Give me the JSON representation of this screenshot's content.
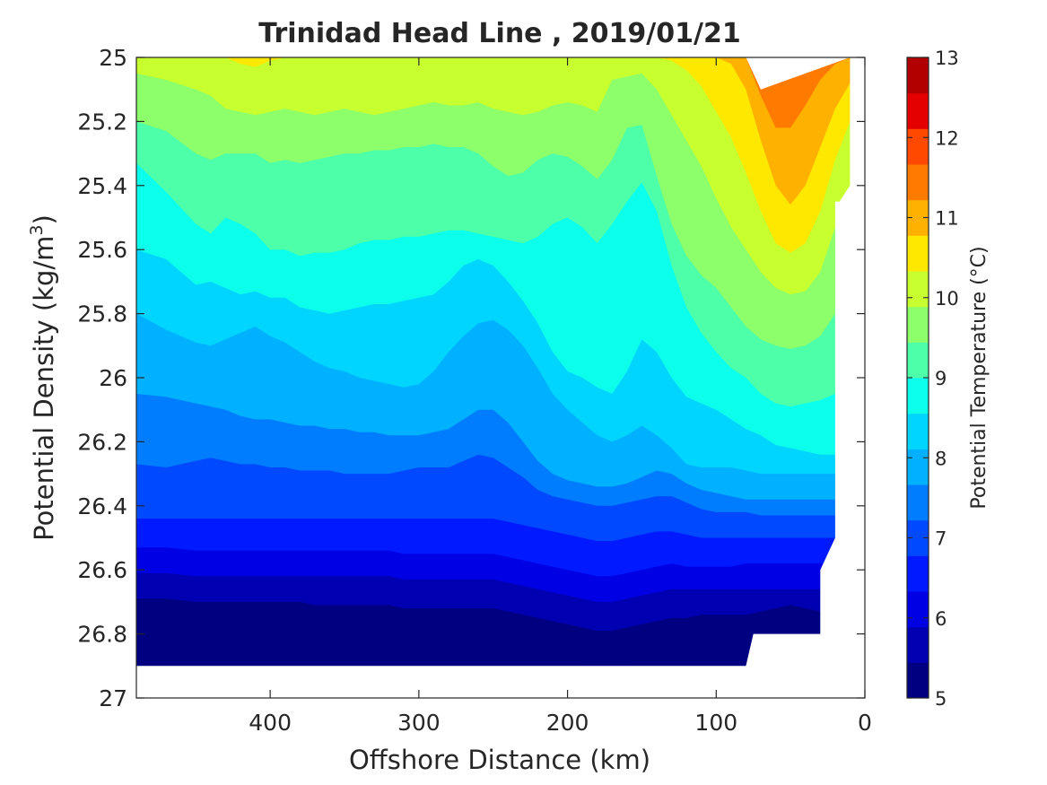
{
  "chart_data": {
    "type": "contour",
    "title": "Trinidad Head Line , 2019/01/21",
    "xlabel": "Offshore Distance (km)",
    "ylabel_main": "Potential Density (kg/m",
    "ylabel_sup": "3",
    "ylabel_close": ")",
    "xlim": [
      490,
      0
    ],
    "ylim": [
      25,
      27
    ],
    "x_reversed": true,
    "y_reversed": true,
    "xticks": [
      "400",
      "300",
      "200",
      "100",
      "0"
    ],
    "yticks": [
      "25",
      "25.2",
      "25.4",
      "25.6",
      "25.8",
      "26",
      "26.2",
      "26.4",
      "26.6",
      "26.8",
      "27"
    ],
    "colorbar": {
      "label": "Potential Temperature (°C)",
      "range": [
        5,
        13
      ],
      "step": 0.5,
      "ticks": [
        "5",
        "6",
        "7",
        "8",
        "9",
        "10",
        "11",
        "12",
        "13"
      ],
      "colormap": "jet",
      "colors": [
        "#000080",
        "#0000B2",
        "#0000E5",
        "#0019FF",
        "#0049FF",
        "#007DFF",
        "#00B1FF",
        "#00D5FF",
        "#0CFFEB",
        "#4DFFA8",
        "#8CFF6A",
        "#C7FF2F",
        "#FFE800",
        "#FFB100",
        "#FF7A00",
        "#FF4800",
        "#E50000",
        "#B20000"
      ]
    },
    "x": [
      490,
      470,
      450,
      440,
      430,
      420,
      410,
      400,
      390,
      380,
      370,
      360,
      350,
      340,
      330,
      320,
      310,
      300,
      290,
      280,
      270,
      260,
      250,
      240,
      230,
      220,
      210,
      200,
      190,
      180,
      170,
      160,
      150,
      140,
      130,
      120,
      110,
      100,
      90,
      80,
      70,
      60,
      50,
      40,
      30,
      20,
      10
    ],
    "isopycnal_boundaries": [
      {
        "lower_edge_of": 13.0,
        "depth": [
          25.0,
          25.0,
          25.0,
          25.0,
          25.0,
          25.0,
          25.0,
          25.0,
          25.0,
          25.0,
          25.0,
          25.0,
          25.0,
          25.0,
          25.0,
          25.0,
          25.0,
          25.0,
          25.0,
          25.0,
          25.0,
          25.0,
          25.0,
          25.0,
          25.0,
          25.0,
          25.0,
          25.0,
          25.0,
          25.0,
          25.0,
          25.0,
          25.0,
          25.0,
          25.0,
          25.0,
          25.0,
          25.0,
          25.0,
          25.0,
          25.0,
          25.0,
          25.0,
          25.0,
          25.0,
          25.0,
          25.0
        ]
      },
      {
        "lower_edge_of": 12.5,
        "depth": [
          25.0,
          25.0,
          25.0,
          25.0,
          25.0,
          25.0,
          25.0,
          25.0,
          25.0,
          25.0,
          25.0,
          25.0,
          25.0,
          25.0,
          25.0,
          25.0,
          25.0,
          25.0,
          25.0,
          25.0,
          25.0,
          25.0,
          25.0,
          25.0,
          25.0,
          25.0,
          25.0,
          25.0,
          25.0,
          25.0,
          25.0,
          25.0,
          25.0,
          25.0,
          25.0,
          25.0,
          25.0,
          25.0,
          25.0,
          25.0,
          25.0,
          25.05,
          25.06,
          25.05,
          25.0,
          25.0,
          25.0
        ]
      },
      {
        "lower_edge_of": 12.0,
        "depth": [
          25.0,
          25.0,
          25.0,
          25.0,
          25.0,
          25.0,
          25.0,
          25.0,
          25.0,
          25.0,
          25.0,
          25.0,
          25.0,
          25.0,
          25.0,
          25.0,
          25.0,
          25.0,
          25.0,
          25.0,
          25.0,
          25.0,
          25.0,
          25.0,
          25.0,
          25.0,
          25.0,
          25.0,
          25.0,
          25.0,
          25.0,
          25.0,
          25.0,
          25.0,
          25.0,
          25.0,
          25.0,
          25.0,
          25.0,
          25.0,
          25.12,
          25.22,
          25.22,
          25.15,
          25.07,
          25.02,
          25.0
        ]
      },
      {
        "lower_edge_of": 11.5,
        "depth": [
          25.0,
          25.0,
          25.0,
          25.0,
          25.0,
          25.0,
          25.0,
          25.0,
          25.0,
          25.0,
          25.0,
          25.0,
          25.0,
          25.0,
          25.0,
          25.0,
          25.0,
          25.0,
          25.0,
          25.0,
          25.0,
          25.0,
          25.0,
          25.0,
          25.0,
          25.0,
          25.0,
          25.0,
          25.0,
          25.0,
          25.0,
          25.0,
          25.0,
          25.0,
          25.0,
          25.0,
          25.0,
          25.0,
          25.02,
          25.1,
          25.26,
          25.4,
          25.46,
          25.4,
          25.28,
          25.16,
          25.08
        ]
      },
      {
        "lower_edge_of": 11.0,
        "depth": [
          25.0,
          25.0,
          25.0,
          25.0,
          25.0,
          25.02,
          25.03,
          25.01,
          25.0,
          25.0,
          25.0,
          25.0,
          25.0,
          25.0,
          25.0,
          25.0,
          25.0,
          25.0,
          25.0,
          25.0,
          25.0,
          25.0,
          25.0,
          25.0,
          25.0,
          25.0,
          25.0,
          25.0,
          25.0,
          25.0,
          25.0,
          25.0,
          25.0,
          25.0,
          25.01,
          25.04,
          25.09,
          25.17,
          25.25,
          25.36,
          25.48,
          25.58,
          25.61,
          25.58,
          25.48,
          25.32,
          25.2
        ]
      },
      {
        "lower_edge_of": 10.5,
        "depth": [
          25.05,
          25.07,
          25.1,
          25.12,
          25.16,
          25.17,
          25.18,
          25.17,
          25.16,
          25.17,
          25.18,
          25.17,
          25.16,
          25.17,
          25.18,
          25.17,
          25.16,
          25.15,
          25.14,
          25.15,
          25.15,
          25.14,
          25.16,
          25.17,
          25.18,
          25.17,
          25.15,
          25.14,
          25.15,
          25.17,
          25.07,
          25.06,
          25.05,
          25.1,
          25.18,
          25.26,
          25.34,
          25.44,
          25.53,
          25.6,
          25.67,
          25.72,
          25.74,
          25.73,
          25.67,
          25.53,
          25.4
        ]
      },
      {
        "lower_edge_of": 10.0,
        "depth": [
          25.2,
          25.23,
          25.3,
          25.32,
          25.3,
          25.3,
          25.3,
          25.33,
          25.32,
          25.33,
          25.32,
          25.31,
          25.3,
          25.3,
          25.29,
          25.29,
          25.28,
          25.28,
          25.27,
          25.28,
          25.28,
          25.3,
          25.34,
          25.37,
          25.36,
          25.32,
          25.3,
          25.31,
          25.34,
          25.38,
          25.32,
          25.22,
          25.21,
          25.37,
          25.52,
          25.62,
          25.68,
          25.72,
          25.78,
          25.84,
          25.88,
          25.9,
          25.91,
          25.9,
          25.87,
          25.8,
          25.75
        ]
      },
      {
        "lower_edge_of": 9.5,
        "depth": [
          25.33,
          25.42,
          25.52,
          25.55,
          25.5,
          25.52,
          25.55,
          25.6,
          25.6,
          25.62,
          25.61,
          25.61,
          25.6,
          25.58,
          25.57,
          25.57,
          25.56,
          25.56,
          25.55,
          25.54,
          25.54,
          25.55,
          25.56,
          25.57,
          25.58,
          25.56,
          25.52,
          25.5,
          25.53,
          25.58,
          25.52,
          25.45,
          25.39,
          25.48,
          25.65,
          25.78,
          25.86,
          25.92,
          25.97,
          26.0,
          26.05,
          26.08,
          26.09,
          26.08,
          26.07,
          26.05,
          26.04
        ]
      },
      {
        "lower_edge_of": 9.0,
        "depth": [
          25.6,
          25.63,
          25.71,
          25.7,
          25.72,
          25.74,
          25.73,
          25.75,
          25.75,
          25.78,
          25.79,
          25.8,
          25.79,
          25.78,
          25.77,
          25.77,
          25.76,
          25.75,
          25.74,
          25.7,
          25.65,
          25.63,
          25.65,
          25.7,
          25.76,
          25.83,
          25.92,
          25.98,
          26.0,
          26.03,
          26.05,
          25.98,
          25.88,
          25.92,
          26.0,
          26.06,
          26.08,
          26.1,
          26.13,
          26.16,
          26.18,
          26.21,
          26.22,
          26.23,
          26.24,
          26.24,
          26.24
        ]
      },
      {
        "lower_edge_of": 8.5,
        "depth": [
          25.8,
          25.85,
          25.89,
          25.9,
          25.88,
          25.86,
          25.84,
          25.87,
          25.89,
          25.92,
          25.95,
          25.97,
          25.98,
          26.0,
          26.01,
          26.02,
          26.03,
          26.02,
          25.98,
          25.92,
          25.87,
          25.83,
          25.82,
          25.85,
          25.9,
          25.97,
          26.05,
          26.1,
          26.14,
          26.18,
          26.2,
          26.18,
          26.15,
          26.18,
          26.22,
          26.27,
          26.28,
          26.28,
          26.28,
          26.29,
          26.3,
          26.3,
          26.3,
          26.3,
          26.3,
          26.3,
          26.3
        ]
      },
      {
        "lower_edge_of": 8.0,
        "depth": [
          26.05,
          26.06,
          26.08,
          26.09,
          26.1,
          26.12,
          26.13,
          26.13,
          26.14,
          26.15,
          26.15,
          26.16,
          26.16,
          26.17,
          26.17,
          26.18,
          26.18,
          26.18,
          26.17,
          26.16,
          26.13,
          26.1,
          26.1,
          26.14,
          26.2,
          26.26,
          26.3,
          26.32,
          26.33,
          26.34,
          26.34,
          26.33,
          26.31,
          26.29,
          26.3,
          26.33,
          26.35,
          26.36,
          26.37,
          26.38,
          26.38,
          26.38,
          26.38,
          26.38,
          26.38,
          26.38,
          26.38
        ]
      },
      {
        "lower_edge_of": 7.5,
        "depth": [
          26.27,
          26.28,
          26.26,
          26.25,
          26.26,
          26.27,
          26.27,
          26.28,
          26.28,
          26.29,
          26.29,
          26.29,
          26.3,
          26.3,
          26.3,
          26.3,
          26.29,
          26.28,
          26.28,
          26.28,
          26.26,
          26.24,
          26.25,
          26.28,
          26.31,
          26.35,
          26.37,
          26.38,
          26.39,
          26.4,
          26.4,
          26.39,
          26.38,
          26.37,
          26.37,
          26.39,
          26.41,
          26.42,
          26.42,
          26.42,
          26.43,
          26.43,
          26.43,
          26.43,
          26.43,
          26.43,
          26.43
        ]
      },
      {
        "lower_edge_of": 7.0,
        "depth": [
          26.44,
          26.44,
          26.44,
          26.44,
          26.44,
          26.44,
          26.44,
          26.44,
          26.44,
          26.44,
          26.44,
          26.44,
          26.44,
          26.44,
          26.44,
          26.44,
          26.44,
          26.44,
          26.44,
          26.44,
          26.44,
          26.44,
          26.44,
          26.45,
          26.46,
          26.47,
          26.48,
          26.49,
          26.5,
          26.51,
          26.51,
          26.5,
          26.49,
          26.48,
          26.48,
          26.49,
          26.5,
          26.5,
          26.5,
          26.5,
          26.5,
          26.5,
          26.5,
          26.5,
          26.5,
          26.5,
          26.5
        ]
      },
      {
        "lower_edge_of": 6.5,
        "depth": [
          26.53,
          26.53,
          26.54,
          26.54,
          26.54,
          26.54,
          26.54,
          26.54,
          26.54,
          26.54,
          26.54,
          26.54,
          26.54,
          26.54,
          26.54,
          26.54,
          26.55,
          26.55,
          26.55,
          26.55,
          26.55,
          26.55,
          26.55,
          26.56,
          26.57,
          26.58,
          26.59,
          26.6,
          26.61,
          26.62,
          26.62,
          26.61,
          26.6,
          26.59,
          26.58,
          26.59,
          26.59,
          26.59,
          26.59,
          26.58,
          26.58,
          26.58,
          26.58,
          26.58,
          26.58,
          26.58,
          26.58
        ]
      },
      {
        "lower_edge_of": 6.0,
        "depth": [
          26.61,
          26.61,
          26.62,
          26.62,
          26.62,
          26.62,
          26.62,
          26.62,
          26.62,
          26.62,
          26.62,
          26.62,
          26.62,
          26.62,
          26.62,
          26.62,
          26.63,
          26.63,
          26.63,
          26.63,
          26.63,
          26.63,
          26.63,
          26.64,
          26.65,
          26.66,
          26.67,
          26.68,
          26.69,
          26.7,
          26.7,
          26.69,
          26.68,
          26.67,
          26.66,
          26.66,
          26.66,
          26.66,
          26.66,
          26.66,
          26.66,
          26.66,
          26.66,
          26.66,
          26.66,
          26.66,
          26.66
        ]
      },
      {
        "lower_edge_of": 5.5,
        "depth": [
          26.69,
          26.69,
          26.7,
          26.7,
          26.7,
          26.7,
          26.7,
          26.7,
          26.7,
          26.7,
          26.71,
          26.71,
          26.71,
          26.71,
          26.71,
          26.71,
          26.72,
          26.72,
          26.72,
          26.72,
          26.72,
          26.72,
          26.72,
          26.73,
          26.74,
          26.75,
          26.76,
          26.77,
          26.78,
          26.79,
          26.79,
          26.78,
          26.77,
          26.76,
          26.75,
          26.75,
          26.74,
          26.74,
          26.74,
          26.74,
          26.73,
          26.72,
          26.71,
          26.72,
          26.73,
          26.73,
          26.73
        ]
      },
      {
        "lower_edge_of": 5.0,
        "depth": [
          26.79,
          26.79,
          26.8,
          26.8,
          26.8,
          26.8,
          26.8,
          26.8,
          26.8,
          26.8,
          26.8,
          26.8,
          26.8,
          26.8,
          26.8,
          26.8,
          26.8,
          26.8,
          26.8,
          26.8,
          26.8,
          26.8,
          26.8,
          26.81,
          26.82,
          26.83,
          26.84,
          26.85,
          26.86,
          26.87,
          26.87,
          26.86,
          26.85,
          26.84,
          26.83,
          26.83,
          26.82,
          26.82,
          26.82,
          26.82,
          26.82,
          26.82,
          26.82,
          26.82,
          26.82,
          26.82,
          26.82
        ]
      },
      {
        "lower_edge_of": 4.5,
        "depth": [
          26.85,
          26.85,
          26.86,
          26.86,
          26.86,
          26.86,
          26.87,
          26.88,
          26.88,
          26.87,
          26.87,
          26.87,
          26.87,
          26.87,
          26.87,
          26.86,
          26.85,
          26.84,
          26.83,
          26.84,
          26.85,
          26.86,
          26.87,
          26.88,
          26.88,
          26.89,
          26.89,
          26.89,
          26.9,
          26.9,
          26.9,
          26.9,
          26.89,
          26.89,
          26.88,
          26.88,
          26.88,
          26.88,
          26.88,
          26.88,
          26.88,
          26.88,
          26.88,
          26.88,
          26.88,
          26.88,
          26.88
        ]
      }
    ],
    "data_extent": {
      "x": [
        490,
        470,
        450,
        430,
        410,
        390,
        370,
        350,
        330,
        310,
        290,
        270,
        250,
        230,
        210,
        190,
        170,
        150,
        130,
        110,
        90,
        80,
        75,
        60,
        40,
        30,
        30,
        20,
        20,
        17,
        10,
        10,
        70,
        80,
        90,
        490
      ],
      "bottom": [
        26.9,
        26.9,
        26.9,
        26.9,
        26.9,
        26.9,
        26.9,
        26.9,
        26.9,
        26.9,
        26.9,
        26.9,
        26.9,
        26.9,
        26.9,
        26.9,
        26.9,
        26.9,
        26.9,
        26.9,
        26.9,
        26.9,
        26.8,
        26.8,
        26.8,
        26.8,
        26.6,
        26.5,
        25.45,
        25.45,
        25.4,
        25.0,
        25.1,
        25.0,
        25.0,
        25.0
      ],
      "note": "ordered polygon of data coverage"
    }
  }
}
